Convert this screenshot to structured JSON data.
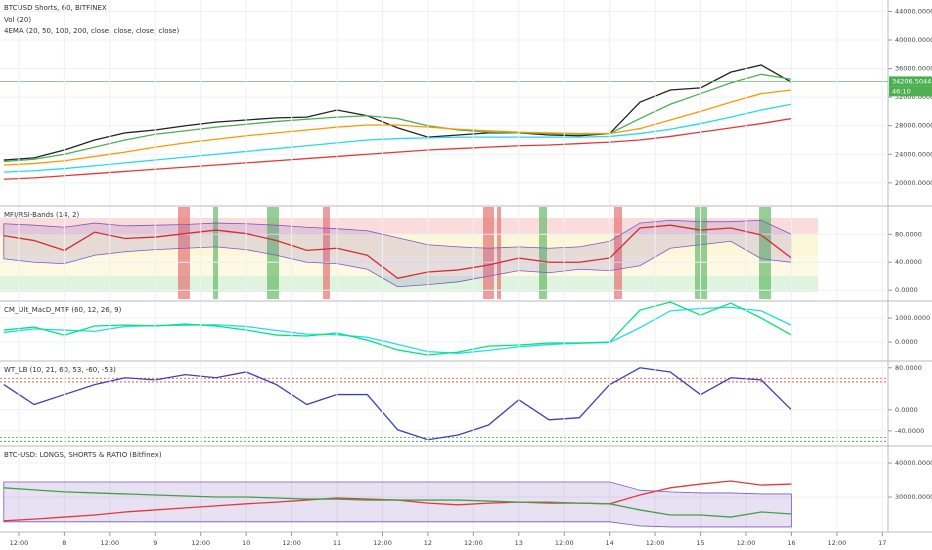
{
  "chart_data": [
    {
      "type": "line",
      "title": "BTCUSD Shorts, 60, BITFINEX",
      "indicators": [
        "Vol (20)",
        "4EMA (20, 50, 100, 200, close, close, close, close)"
      ],
      "x": [
        8,
        16,
        24,
        32,
        40,
        48,
        56,
        64,
        72,
        80,
        88,
        96,
        104,
        112,
        120,
        128,
        136,
        144,
        152,
        160,
        168,
        176,
        184,
        192,
        200,
        208,
        216
      ],
      "xlim": [
        7,
        241.5
      ],
      "ylim": [
        16900,
        45600
      ],
      "yticks": [
        {
          "value": 20000,
          "label": "20000.0000"
        },
        {
          "value": 24000,
          "label": "24000.0000"
        },
        {
          "value": 28000,
          "label": "28000.0000"
        },
        {
          "value": 32000,
          "label": "32000.0000"
        },
        {
          "value": 36000,
          "label": "36000.0000"
        },
        {
          "value": 40000,
          "label": "40000.0000"
        },
        {
          "value": 44000,
          "label": "44000.0000"
        }
      ],
      "last_price": 34206.5044,
      "countdown": "46:10",
      "series": [
        {
          "color": "#222222",
          "values": [
            23200,
            23500,
            24600,
            26000,
            27000,
            27400,
            28000,
            28500,
            28800,
            29100,
            29200,
            30200,
            29400,
            27700,
            26400,
            26700,
            27000,
            27000,
            26700,
            26600,
            26900,
            31300,
            33000,
            33300,
            35500,
            36500,
            34100
          ]
        },
        {
          "color": "#4caf50",
          "values": [
            23000,
            23300,
            24000,
            25000,
            26000,
            26800,
            27300,
            27800,
            28200,
            28600,
            28900,
            29200,
            29400,
            29000,
            28000,
            27400,
            27100,
            27000,
            26900,
            26800,
            26900,
            29000,
            31000,
            32500,
            34000,
            35200,
            34500
          ]
        },
        {
          "color": "#ff9800",
          "values": [
            22500,
            22700,
            23100,
            23700,
            24300,
            25000,
            25600,
            26100,
            26600,
            27000,
            27400,
            27800,
            28100,
            28100,
            27800,
            27500,
            27300,
            27100,
            27000,
            26900,
            26900,
            27600,
            28800,
            30000,
            31300,
            32500,
            33000
          ]
        },
        {
          "color": "#26d9f0",
          "values": [
            21500,
            21700,
            22000,
            22400,
            22800,
            23200,
            23600,
            24000,
            24400,
            24800,
            25200,
            25600,
            26000,
            26200,
            26300,
            26400,
            26400,
            26400,
            26400,
            26400,
            26500,
            26900,
            27500,
            28300,
            29200,
            30200,
            31000
          ]
        },
        {
          "color": "#e53935",
          "values": [
            20500,
            20700,
            21000,
            21300,
            21600,
            21900,
            22200,
            22500,
            22800,
            23100,
            23400,
            23700,
            24000,
            24300,
            24600,
            24800,
            25000,
            25200,
            25300,
            25500,
            25700,
            26000,
            26500,
            27100,
            27700,
            28300,
            29000
          ]
        }
      ]
    },
    {
      "type": "line",
      "title": "MFI/RSI-Bands (14, 2)",
      "x": [
        8,
        16,
        24,
        32,
        40,
        48,
        56,
        64,
        72,
        80,
        88,
        96,
        104,
        112,
        120,
        128,
        136,
        144,
        152,
        160,
        168,
        176,
        184,
        192,
        200,
        208,
        216
      ],
      "xlim": [
        7,
        241.5
      ],
      "ylim": [
        -14,
        119
      ],
      "yticks": [
        {
          "value": 0,
          "label": "0.0000"
        },
        {
          "value": 40,
          "label": "40.0000"
        },
        {
          "value": 80,
          "label": "80.0000"
        }
      ],
      "band": {
        "color": "#7e57c2",
        "upper": [
          95,
          93,
          90,
          96,
          92,
          93,
          94,
          96,
          95,
          93,
          90,
          88,
          85,
          75,
          65,
          62,
          60,
          62,
          60,
          62,
          70,
          96,
          100,
          98,
          98,
          100,
          80
        ],
        "lower": [
          45,
          40,
          38,
          50,
          55,
          58,
          60,
          62,
          58,
          50,
          40,
          38,
          30,
          5,
          8,
          12,
          20,
          28,
          25,
          30,
          28,
          35,
          60,
          65,
          70,
          45,
          40
        ]
      },
      "series": [
        {
          "color": "#d32f2f",
          "values": [
            78,
            71,
            57,
            83,
            74,
            76,
            81,
            86,
            81,
            71,
            57,
            60,
            50,
            17,
            26,
            29,
            36,
            46,
            40,
            40,
            46,
            89,
            93,
            86,
            89,
            79,
            46
          ]
        }
      ]
    },
    {
      "type": "line",
      "title": "CM_Ult_MacD_MTF (60, 12, 26, 9)",
      "x": [
        8,
        16,
        24,
        32,
        40,
        48,
        56,
        64,
        72,
        80,
        88,
        96,
        104,
        112,
        120,
        128,
        136,
        144,
        152,
        160,
        168,
        176,
        184,
        192,
        200,
        208,
        216
      ],
      "xlim": [
        7,
        241.5
      ],
      "ylim": [
        -750,
        1670
      ],
      "yticks": [
        {
          "value": 0,
          "label": "0.0000"
        },
        {
          "value": 1000,
          "label": "1000.0000"
        }
      ],
      "series": [
        {
          "color": "#26d9f0",
          "values": [
            400,
            550,
            500,
            450,
            650,
            690,
            700,
            720,
            650,
            480,
            330,
            300,
            200,
            -100,
            -400,
            -470,
            -350,
            -200,
            -100,
            -50,
            -20,
            600,
            1300,
            1400,
            1450,
            1300,
            700
          ]
        },
        {
          "color": "#00e676",
          "values": [
            500,
            625,
            290,
            670,
            710,
            670,
            750,
            670,
            500,
            290,
            250,
            375,
            80,
            -330,
            -540,
            -420,
            -170,
            -125,
            -40,
            -40,
            0,
            1330,
            1670,
            1125,
            1625,
            1000,
            290
          ]
        }
      ]
    },
    {
      "type": "line",
      "title": "WT_LB (10, 21, 60, 53, -60, -53)",
      "x": [
        8,
        16,
        24,
        32,
        40,
        48,
        56,
        64,
        72,
        80,
        88,
        96,
        104,
        112,
        120,
        128,
        136,
        144,
        152,
        160,
        168,
        176,
        184,
        192,
        200,
        208,
        216
      ],
      "xlim": [
        7,
        241.5
      ],
      "ylim": [
        -67,
        91
      ],
      "yticks": [
        {
          "value": -40,
          "label": "-40.0000"
        },
        {
          "value": 0,
          "label": "0.0000"
        },
        {
          "value": 80,
          "label": "80.0000"
        }
      ],
      "levels": [
        60,
        53,
        -53,
        -60
      ],
      "series": [
        {
          "color": "#3f3fb5",
          "values": [
            48,
            10,
            29,
            48,
            61,
            57,
            67,
            61,
            72,
            48,
            10,
            29,
            29,
            -38,
            -57,
            -48,
            -29,
            19,
            -19,
            -15,
            48,
            80,
            72,
            29,
            61,
            57,
            0
          ]
        }
      ]
    },
    {
      "type": "line",
      "title": "BTC-USD: LONGS, SHORTS & RATIO (Bitfinex)",
      "x": [
        8,
        16,
        24,
        32,
        40,
        48,
        56,
        64,
        72,
        80,
        88,
        96,
        104,
        112,
        120,
        128,
        136,
        144,
        152,
        160,
        168,
        176,
        184,
        192,
        200,
        208,
        216
      ],
      "xlim": [
        7,
        241.5
      ],
      "ylim": [
        20300,
        44700
      ],
      "yticks": [
        {
          "value": 30000,
          "label": "30000.0000"
        },
        {
          "value": 40000,
          "label": "40000.0000"
        }
      ],
      "xticks": [
        {
          "value": 12,
          "label": "12:00"
        },
        {
          "value": 24,
          "label": "8"
        },
        {
          "value": 36,
          "label": "12:00"
        },
        {
          "value": 48,
          "label": "9"
        },
        {
          "value": 60,
          "label": "12:00"
        },
        {
          "value": 72,
          "label": "10"
        },
        {
          "value": 84,
          "label": "12:00"
        },
        {
          "value": 96,
          "label": "11"
        },
        {
          "value": 108,
          "label": "12:00"
        },
        {
          "value": 120,
          "label": "12"
        },
        {
          "value": 132,
          "label": "12:00"
        },
        {
          "value": 144,
          "label": "13"
        },
        {
          "value": 156,
          "label": "12:00"
        },
        {
          "value": 168,
          "label": "14"
        },
        {
          "value": 180,
          "label": "12:00"
        },
        {
          "value": 192,
          "label": "15"
        },
        {
          "value": 204,
          "label": "12:00"
        },
        {
          "value": 216,
          "label": "16"
        },
        {
          "value": 228,
          "label": "12:00"
        },
        {
          "value": 240,
          "label": "17"
        }
      ],
      "band": {
        "color": "#7e57c2",
        "upper": [
          34400,
          34400,
          34400,
          34400,
          34400,
          34400,
          34400,
          34400,
          34400,
          34400,
          34400,
          34400,
          34400,
          34400,
          34400,
          34400,
          34400,
          34400,
          34400,
          34400,
          34400,
          32000,
          31500,
          31200,
          31200,
          30900,
          30900
        ],
        "lower": [
          22700,
          22700,
          22700,
          22700,
          22700,
          22700,
          22700,
          22700,
          22700,
          22700,
          22700,
          22700,
          22700,
          22700,
          22700,
          22700,
          22700,
          22700,
          22700,
          22700,
          22700,
          21500,
          21200,
          21200,
          21200,
          21200,
          21200
        ]
      },
      "series": [
        {
          "color": "#e53935",
          "values": [
            23000,
            23500,
            24100,
            24700,
            25600,
            26200,
            26800,
            27400,
            28000,
            28500,
            29100,
            29700,
            29400,
            29100,
            28200,
            27700,
            28200,
            28500,
            28200,
            28200,
            28000,
            30600,
            32700,
            33800,
            34700,
            33500,
            33800
          ]
        },
        {
          "color": "#43a047",
          "values": [
            32700,
            32100,
            31500,
            31200,
            30900,
            30600,
            30300,
            30000,
            30000,
            29700,
            29400,
            29400,
            29100,
            29100,
            29100,
            29100,
            28800,
            28500,
            28500,
            28200,
            28000,
            26200,
            24700,
            24700,
            24100,
            25600,
            25000
          ]
        }
      ]
    }
  ]
}
